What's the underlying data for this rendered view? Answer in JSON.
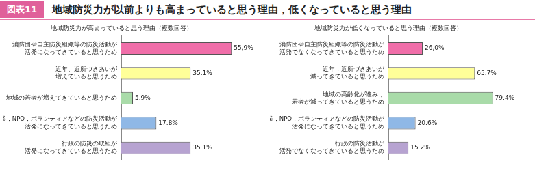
{
  "header": {
    "label": "図表11",
    "title": "地域防災力が以前よりも高まっていると思う理由，低くなっていると思う理由"
  },
  "chart_data": [
    {
      "type": "bar",
      "orientation": "horizontal",
      "title": "地域防災力が高まっていると思う理由（複数回答）",
      "categories": [
        "消防団や自主防災組織等の防災活動が\n活発になってきていると思うため",
        "近年、近所づきあいが\n増えていると思うため",
        "地域の若者が増えてきていると思うため",
        "企業，NPO，ボランティアなどの防災活動が\n活発になってきていると思うため",
        "行政の防災の取組が\n活発になってきていると思うため"
      ],
      "values": [
        55.9,
        35.1,
        5.9,
        17.8,
        35.1
      ],
      "value_labels": [
        "55,9%",
        "35.1%",
        "5.9%",
        "17.8%",
        "35.1%"
      ],
      "colors": [
        "#f06ea9",
        "#ffff99",
        "#a9dba9",
        "#8fb8e6",
        "#b7a3d1"
      ],
      "xlim": [
        0,
        60
      ],
      "grid": false,
      "data_labels": true,
      "tick_labels": "y"
    },
    {
      "type": "bar",
      "orientation": "horizontal",
      "title": "地域防災力が低くなっていると思う理由（複数回答）",
      "categories": [
        "消防団や自主防災組織等の防災活動が\n活発でなくなってきていると思うため",
        "近年，近所づきあいが\n減ってきていると思うため",
        "地域の高齢化が進み，\n若者が減ってきていると思うため",
        "企業，NPO，ボランティアなどの防災活動が\n活発になってきていると思うため",
        "行政の防災活動が\n活発でなくなってきていると思うため"
      ],
      "values": [
        26.0,
        65.7,
        79.4,
        20.6,
        15.2
      ],
      "value_labels": [
        "26,0%",
        "65.7%",
        "79.4%",
        "20.6%",
        "15.2%"
      ],
      "colors": [
        "#f06ea9",
        "#ffff99",
        "#a9dba9",
        "#8fb8e6",
        "#b7a3d1"
      ],
      "xlim": [
        0,
        90
      ],
      "grid": false,
      "data_labels": true,
      "tick_labels": "y"
    }
  ]
}
